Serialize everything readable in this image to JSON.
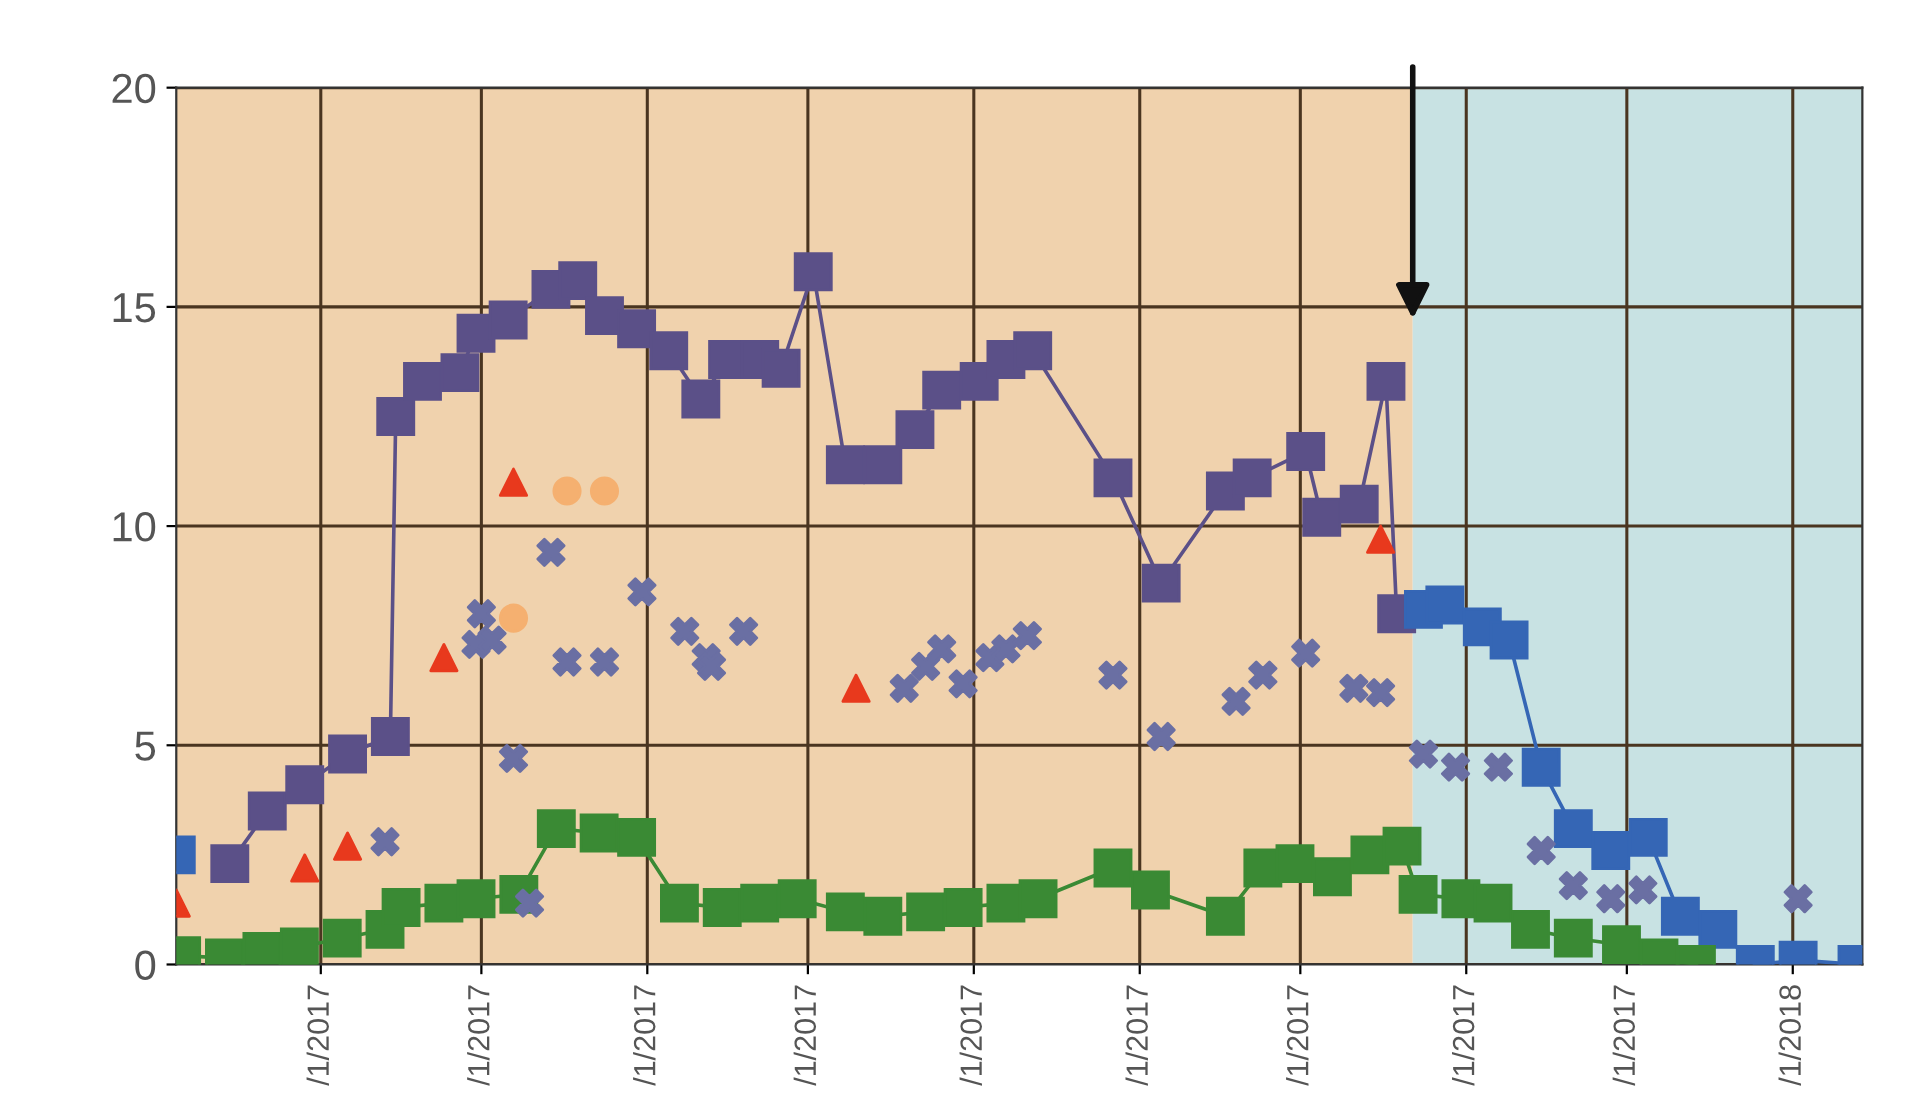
{
  "chart_data": {
    "type": "line",
    "xlim": [
      "2017-03-05",
      "2018-01-14"
    ],
    "ylim": [
      0,
      20
    ],
    "xticks": [
      {
        "value": "2017-04-01",
        "label": "/1/2017"
      },
      {
        "value": "2017-05-01",
        "label": "/1/2017"
      },
      {
        "value": "2017-06-01",
        "label": "/1/2017"
      },
      {
        "value": "2017-07-01",
        "label": "/1/2017"
      },
      {
        "value": "2017-08-01",
        "label": "/1/2017"
      },
      {
        "value": "2017-09-01",
        "label": "/1/2017"
      },
      {
        "value": "2017-10-01",
        "label": "/1/2017"
      },
      {
        "value": "2017-11-01",
        "label": "/1/2017"
      },
      {
        "value": "2017-12-01",
        "label": "/1/2017"
      },
      {
        "value": "2018-01-01",
        "label": "/1/2018"
      }
    ],
    "yticks": [
      0,
      5,
      10,
      15,
      20
    ],
    "grid": true,
    "bands": [
      {
        "axis": "x",
        "from": "2017-03-05",
        "to": "2017-10-22",
        "color": "#f0d2ad"
      },
      {
        "axis": "x",
        "from": "2017-10-22",
        "to": "2018-01-14",
        "color": "#c8e2e3"
      }
    ],
    "series": [
      {
        "marker": "square",
        "color": "#5b5088",
        "x": [
          "2017-03-15",
          "2017-03-22",
          "2017-03-29",
          "2017-04-06",
          "2017-04-14",
          "2017-04-15",
          "2017-04-20",
          "2017-04-27",
          "2017-04-30",
          "2017-05-06",
          "2017-05-14",
          "2017-05-19",
          "2017-05-24",
          "2017-05-30",
          "2017-06-05",
          "2017-06-11",
          "2017-06-16",
          "2017-06-22",
          "2017-06-26",
          "2017-07-02",
          "2017-07-08",
          "2017-07-15",
          "2017-07-21",
          "2017-07-26",
          "2017-08-02",
          "2017-08-07",
          "2017-08-12",
          "2017-08-27",
          "2017-09-05",
          "2017-09-17",
          "2017-09-22",
          "2017-10-02",
          "2017-10-05",
          "2017-10-12",
          "2017-10-17",
          "2017-10-19"
        ],
        "values": [
          2.3,
          3.5,
          4.1,
          4.8,
          5.2,
          12.5,
          13.3,
          13.5,
          14.4,
          14.7,
          15.4,
          15.6,
          14.8,
          14.5,
          14.0,
          12.9,
          13.8,
          13.8,
          13.6,
          15.8,
          11.4,
          11.4,
          12.2,
          13.1,
          13.3,
          13.8,
          14.0,
          11.1,
          8.7,
          10.8,
          11.1,
          11.7,
          10.2,
          10.5,
          13.3,
          8.0
        ]
      },
      {
        "marker": "square",
        "color": "#3566b5",
        "x": [
          "2017-03-05",
          "2017-03-06",
          "2017-10-24",
          "2017-10-28",
          "2017-11-04",
          "2017-11-09",
          "2017-11-15",
          "2017-11-21",
          "2017-11-28",
          "2017-12-05",
          "2017-12-11",
          "2017-12-18",
          "2017-12-25",
          "2018-01-02",
          "2018-01-13"
        ],
        "values": [
          2.5,
          null,
          8.1,
          8.2,
          7.7,
          7.4,
          4.5,
          3.1,
          2.6,
          2.9,
          1.1,
          0.8,
          0.0,
          0.1,
          0.0
        ]
      },
      {
        "marker": "square",
        "color": "#3a8a34",
        "x": [
          "2017-03-06",
          "2017-03-14",
          "2017-03-21",
          "2017-03-28",
          "2017-04-05",
          "2017-04-13",
          "2017-04-16",
          "2017-04-24",
          "2017-04-30",
          "2017-05-08",
          "2017-05-15",
          "2017-05-23",
          "2017-05-30",
          "2017-06-07",
          "2017-06-15",
          "2017-06-22",
          "2017-06-29",
          "2017-07-08",
          "2017-07-15",
          "2017-07-23",
          "2017-07-30",
          "2017-08-07",
          "2017-08-13",
          "2017-08-27",
          "2017-09-03",
          "2017-09-17",
          "2017-09-24",
          "2017-09-30",
          "2017-10-07",
          "2017-10-14",
          "2017-10-20",
          "2017-10-23",
          "2017-10-31",
          "2017-11-06",
          "2017-11-13",
          "2017-11-21",
          "2017-11-30",
          "2017-12-07",
          "2017-12-14"
        ],
        "values": [
          0.2,
          0.15,
          0.3,
          0.4,
          0.6,
          0.8,
          1.3,
          1.4,
          1.5,
          1.6,
          3.1,
          3.0,
          2.9,
          1.4,
          1.3,
          1.4,
          1.5,
          1.2,
          1.1,
          1.2,
          1.3,
          1.4,
          1.5,
          2.2,
          1.7,
          1.1,
          2.2,
          2.3,
          2.0,
          2.5,
          2.7,
          1.6,
          1.5,
          1.4,
          0.8,
          0.6,
          0.45,
          0.15,
          0.0
        ]
      },
      {
        "type": "scatter",
        "marker": "cross",
        "color": "#6a6fa3",
        "x": [
          "2017-04-13",
          "2017-04-30",
          "2017-05-01",
          "2017-05-03",
          "2017-05-07",
          "2017-05-10",
          "2017-05-14",
          "2017-05-17",
          "2017-05-24",
          "2017-05-31",
          "2017-06-08",
          "2017-06-12",
          "2017-06-13",
          "2017-06-19",
          "2017-07-19",
          "2017-07-23",
          "2017-07-26",
          "2017-07-30",
          "2017-08-04",
          "2017-08-07",
          "2017-08-11",
          "2017-08-27",
          "2017-09-05",
          "2017-09-19",
          "2017-09-24",
          "2017-10-02",
          "2017-10-11",
          "2017-10-16",
          "2017-10-24",
          "2017-10-30",
          "2017-11-07",
          "2017-11-15",
          "2017-11-21",
          "2017-11-28",
          "2017-12-04",
          "2018-01-02"
        ],
        "values": [
          2.8,
          7.3,
          8.0,
          7.4,
          4.7,
          1.4,
          9.4,
          6.9,
          6.9,
          8.5,
          7.6,
          7.0,
          6.8,
          7.6,
          6.3,
          6.8,
          7.2,
          6.4,
          7.0,
          7.2,
          7.5,
          6.6,
          5.2,
          6.0,
          6.6,
          7.1,
          6.3,
          6.2,
          4.8,
          4.5,
          4.5,
          2.6,
          1.8,
          1.5,
          1.7,
          1.5
        ]
      },
      {
        "type": "scatter",
        "marker": "triangle",
        "color": "#e8391d",
        "x": [
          "2017-03-05",
          "2017-03-29",
          "2017-04-06",
          "2017-04-24",
          "2017-05-07",
          "2017-07-10",
          "2017-10-16"
        ],
        "values": [
          1.4,
          2.2,
          2.7,
          7.0,
          11.0,
          6.3,
          9.7
        ]
      },
      {
        "type": "scatter",
        "marker": "circle",
        "color": "#f5b070",
        "x": [
          "2017-05-07",
          "2017-05-17",
          "2017-05-24"
        ],
        "values": [
          7.9,
          10.8,
          10.8
        ]
      }
    ]
  }
}
